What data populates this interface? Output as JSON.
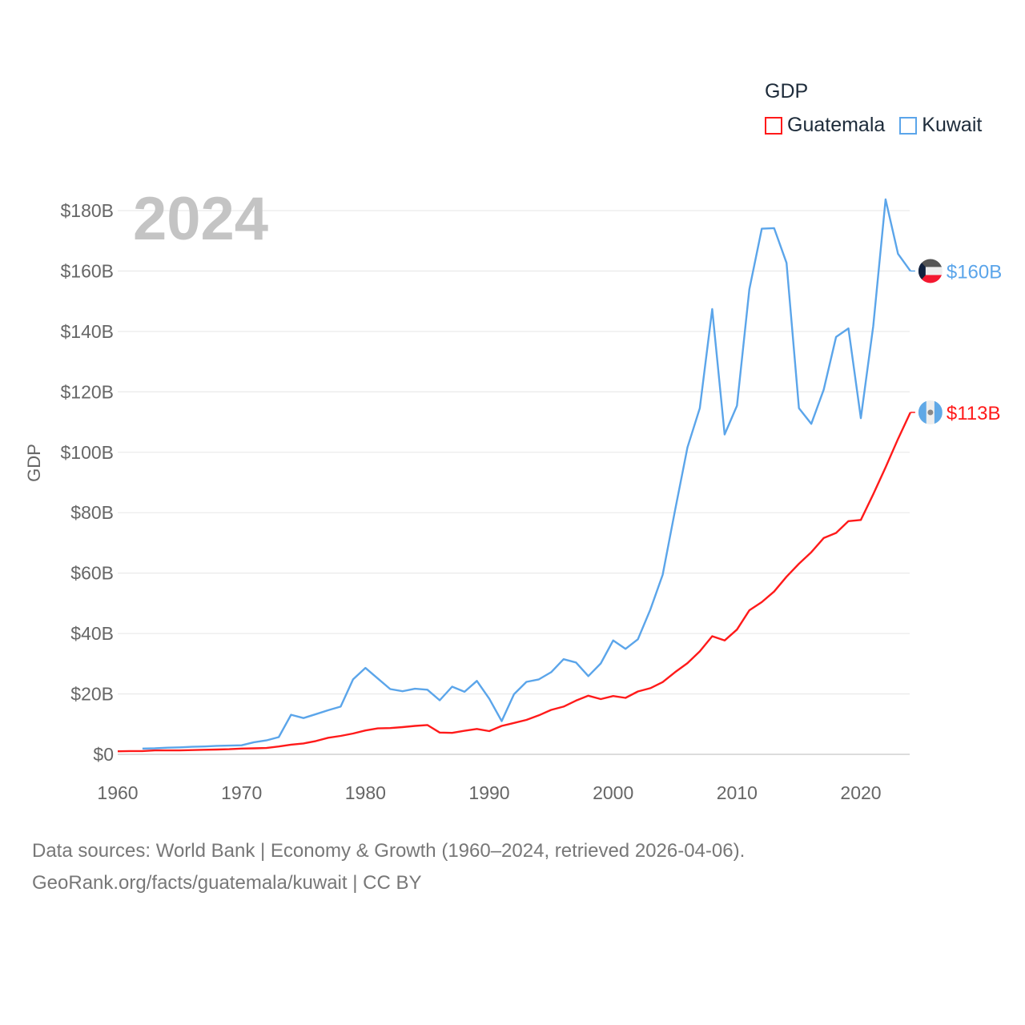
{
  "chart_data": {
    "type": "line",
    "title": "",
    "xlabel": "",
    "ylabel": "GDP",
    "year_label": "2024",
    "legend_title": "GDP",
    "legend_placement": "top-right",
    "xlim": [
      1960,
      2024
    ],
    "ylim": [
      0,
      180
    ],
    "x_ticks": [
      1960,
      1970,
      1980,
      1990,
      2000,
      2010,
      2020
    ],
    "x_tick_labels": [
      "1960",
      "1970",
      "1980",
      "1990",
      "2000",
      "2010",
      "2020"
    ],
    "y_ticks": [
      0,
      20,
      40,
      60,
      80,
      100,
      120,
      140,
      160,
      180
    ],
    "y_tick_labels": [
      "$0",
      "$20B",
      "$40B",
      "$60B",
      "$80B",
      "$100B",
      "$120B",
      "$140B",
      "$160B",
      "$180B"
    ],
    "grid": true,
    "series": [
      {
        "name": "Guatemala",
        "color": "#ff1a1a",
        "end_label": "$113B",
        "start_year": 1960,
        "values": [
          1.0,
          1.1,
          1.1,
          1.3,
          1.3,
          1.3,
          1.4,
          1.5,
          1.6,
          1.7,
          1.9,
          2.0,
          2.1,
          2.6,
          3.2,
          3.6,
          4.4,
          5.5,
          6.1,
          6.9,
          7.9,
          8.6,
          8.7,
          9.0,
          9.4,
          9.7,
          7.2,
          7.1,
          7.8,
          8.4,
          7.7,
          9.4,
          10.4,
          11.4,
          12.9,
          14.7,
          15.8,
          17.8,
          19.4,
          18.3,
          19.3,
          18.7,
          20.8,
          21.9,
          23.9,
          27.2,
          30.2,
          34.1,
          39.1,
          37.7,
          41.3,
          47.7,
          50.4,
          53.9,
          58.8,
          63.1,
          66.9,
          71.6,
          73.3,
          77.2,
          77.6,
          86.1,
          95.0,
          104.4,
          113.2
        ]
      },
      {
        "name": "Kuwait",
        "color": "#5ba5ea",
        "end_label": "$160B",
        "start_year": 1962,
        "values": [
          1.9,
          2.0,
          2.2,
          2.3,
          2.5,
          2.6,
          2.8,
          2.9,
          3.0,
          4.0,
          4.6,
          5.7,
          13.1,
          12.0,
          13.3,
          14.6,
          15.8,
          24.8,
          28.6,
          25.1,
          21.6,
          20.9,
          21.7,
          21.4,
          17.9,
          22.4,
          20.7,
          24.3,
          18.4,
          11.0,
          19.9,
          24.0,
          24.8,
          27.2,
          31.5,
          30.4,
          25.9,
          30.1,
          37.7,
          34.9,
          38.1,
          47.9,
          59.4,
          80.8,
          101.6,
          114.6,
          147.4,
          105.9,
          115.4,
          154.0,
          174.0,
          174.2,
          162.7,
          114.6,
          109.4,
          120.7,
          138.2,
          141.0,
          111.3,
          141.8,
          183.7,
          165.7,
          160.0
        ]
      }
    ]
  },
  "footer": {
    "line1": "Data sources: World Bank | Economy & Growth (1960–2024, retrieved 2026-04-06).",
    "line2": "GeoRank.org/facts/guatemala/kuwait | CC BY"
  }
}
